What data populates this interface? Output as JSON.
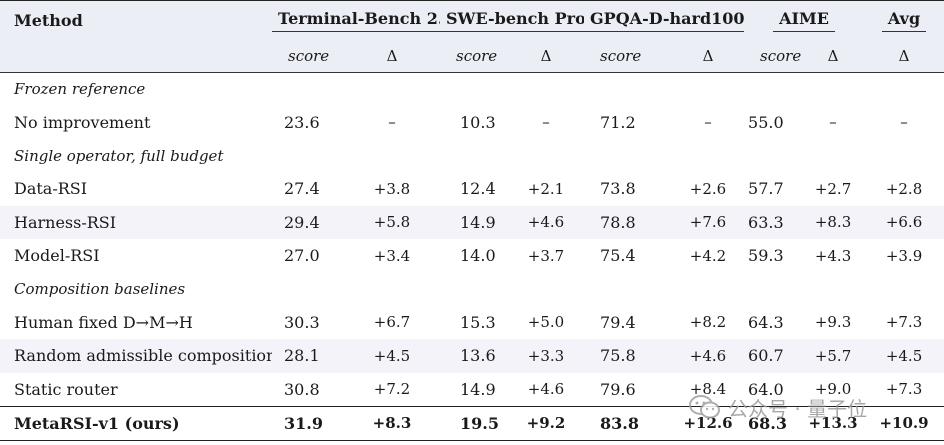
{
  "header": {
    "method": "Method",
    "columns": [
      "Terminal-Bench 2.1",
      "SWE-bench Pro",
      "GPQA-D-hard100",
      "AIME",
      "Avg"
    ],
    "score_label": "score",
    "delta_label": "Δ"
  },
  "groups": [
    {
      "title": "Frozen reference",
      "rows": [
        {
          "name": "No improvement",
          "cells": [
            "23.6",
            "–",
            "10.3",
            "–",
            "71.2",
            "–",
            "55.0",
            "–",
            "–"
          ]
        }
      ]
    },
    {
      "title": "Single operator, full budget",
      "rows": [
        {
          "name": "Data-RSI",
          "cells": [
            "27.4",
            "+3.8",
            "12.4",
            "+2.1",
            "73.8",
            "+2.6",
            "57.7",
            "+2.7",
            "+2.8"
          ]
        },
        {
          "name": "Harness-RSI",
          "cells": [
            "29.4",
            "+5.8",
            "14.9",
            "+4.6",
            "78.8",
            "+7.6",
            "63.3",
            "+8.3",
            "+6.6"
          ]
        },
        {
          "name": "Model-RSI",
          "cells": [
            "27.0",
            "+3.4",
            "14.0",
            "+3.7",
            "75.4",
            "+4.2",
            "59.3",
            "+4.3",
            "+3.9"
          ]
        }
      ]
    },
    {
      "title": "Composition baselines",
      "rows": [
        {
          "name": "Human fixed D→M→H",
          "cells": [
            "30.3",
            "+6.7",
            "15.3",
            "+5.0",
            "79.4",
            "+8.2",
            "64.3",
            "+9.3",
            "+7.3"
          ]
        },
        {
          "name": "Random admissible composition",
          "cells": [
            "28.1",
            "+4.5",
            "13.6",
            "+3.3",
            "75.8",
            "+4.6",
            "60.7",
            "+5.7",
            "+4.5"
          ]
        },
        {
          "name": "Static router",
          "cells": [
            "30.8",
            "+7.2",
            "14.9",
            "+4.6",
            "79.6",
            "+8.4",
            "64.0",
            "+9.0",
            "+7.3"
          ]
        }
      ]
    }
  ],
  "final_row": {
    "name": "MetaRSI-v1 (ours)",
    "cells": [
      "31.9",
      "+8.3",
      "19.5",
      "+9.2",
      "83.8",
      "+12.6",
      "68.3",
      "+13.3",
      "+10.9"
    ]
  },
  "watermark": {
    "text": "公众号 · 量子位"
  }
}
